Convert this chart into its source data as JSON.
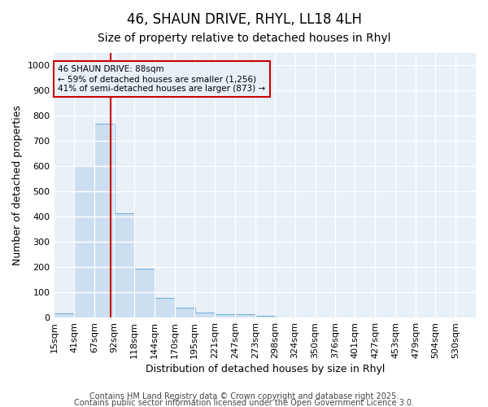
{
  "title1": "46, SHAUN DRIVE, RHYL, LL18 4LH",
  "title2": "Size of property relative to detached houses in Rhyl",
  "xlabel": "Distribution of detached houses by size in Rhyl",
  "ylabel": "Number of detached properties",
  "bin_labels": [
    "15sqm",
    "41sqm",
    "67sqm",
    "92sqm",
    "118sqm",
    "144sqm",
    "170sqm",
    "195sqm",
    "221sqm",
    "247sqm",
    "273sqm",
    "298sqm",
    "324sqm",
    "350sqm",
    "376sqm",
    "401sqm",
    "427sqm",
    "453sqm",
    "479sqm",
    "504sqm",
    "530sqm"
  ],
  "bin_left_edges": [
    15,
    41,
    67,
    92,
    118,
    144,
    170,
    195,
    221,
    247,
    273,
    298,
    324,
    350,
    376,
    401,
    427,
    453,
    479,
    504,
    530
  ],
  "bar_heights": [
    15,
    600,
    770,
    415,
    193,
    77,
    38,
    18,
    12,
    13,
    7,
    0,
    0,
    0,
    0,
    0,
    0,
    0,
    0,
    0,
    0
  ],
  "bar_color": "#ccdff0",
  "bar_edge_color": "#7ab0d4",
  "property_line_x": 88,
  "property_line_color": "#cc0000",
  "annotation_line1": "46 SHAUN DRIVE: 88sqm",
  "annotation_line2": "← 59% of detached houses are smaller (1,256)",
  "annotation_line3": "41% of semi-detached houses are larger (873) →",
  "annotation_box_color": "#cc0000",
  "ylim": [
    0,
    1050
  ],
  "yticks": [
    0,
    100,
    200,
    300,
    400,
    500,
    600,
    700,
    800,
    900,
    1000
  ],
  "footer1": "Contains HM Land Registry data © Crown copyright and database right 2025.",
  "footer2": "Contains public sector information licensed under the Open Government Licence 3.0.",
  "background_color": "#ffffff",
  "plot_bg_color": "#e8f0f8",
  "grid_color": "#ffffff",
  "title1_fontsize": 12,
  "title2_fontsize": 10,
  "xlabel_fontsize": 9,
  "ylabel_fontsize": 9,
  "tick_fontsize": 8,
  "footer_fontsize": 7
}
